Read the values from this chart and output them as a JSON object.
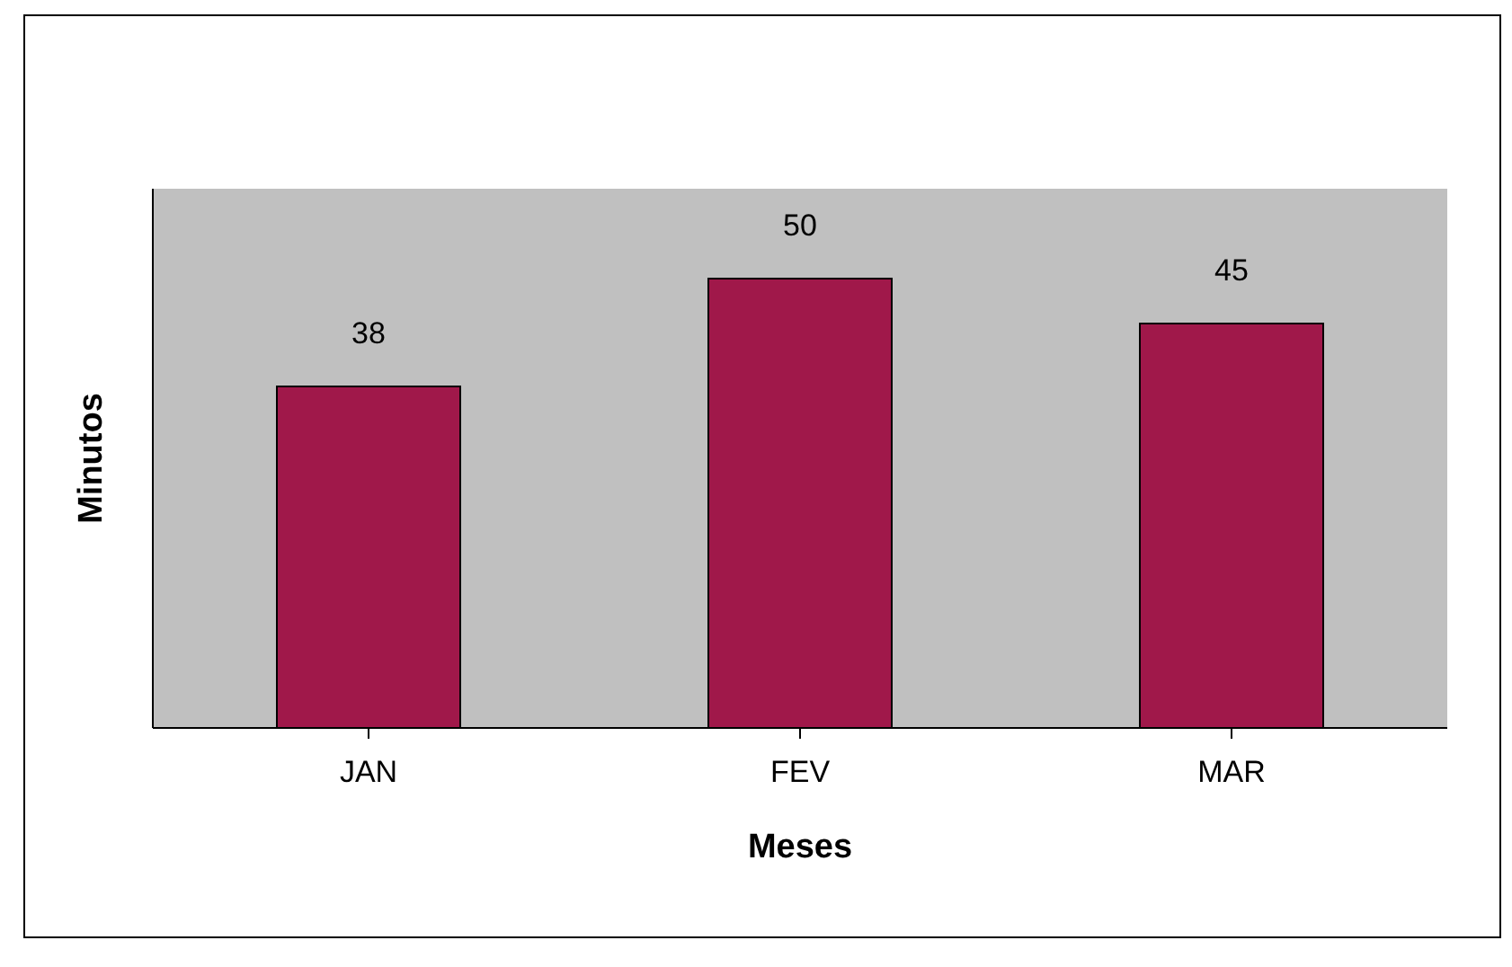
{
  "chart_data": {
    "type": "bar",
    "xlabel": "Meses",
    "ylabel": "Minutos",
    "categories": [
      "JAN",
      "FEV",
      "MAR"
    ],
    "values": [
      38,
      50,
      45
    ],
    "color": "#a0184a",
    "data_labels": true,
    "relative": false,
    "grid": false,
    "legend": false
  }
}
